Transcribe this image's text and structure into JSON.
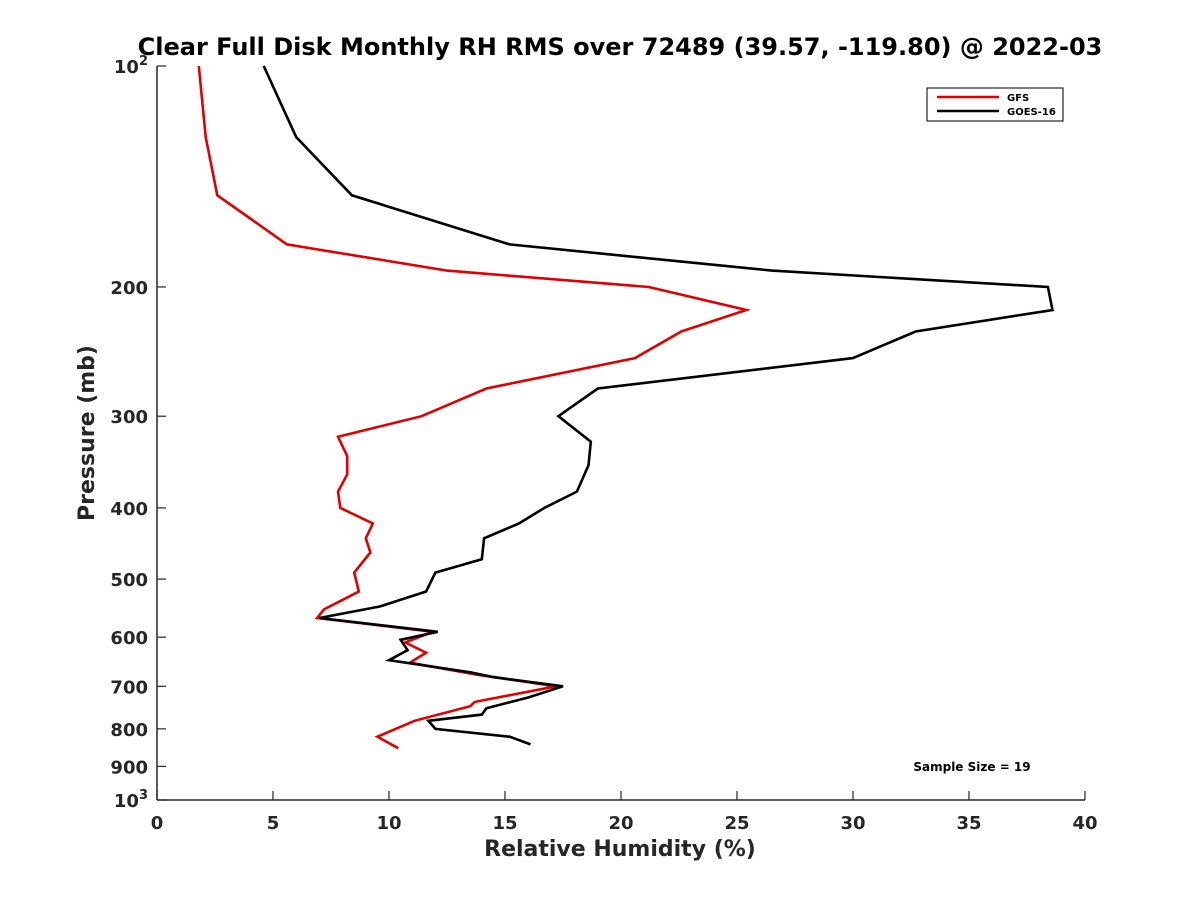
{
  "chart_data": {
    "type": "line",
    "title": "Clear Full Disk Monthly RH RMS over 72489 (39.57, -119.80) @ 2022-03",
    "xlabel": "Relative Humidity (%)",
    "ylabel": "Pressure (mb)",
    "xlim": [
      0,
      40
    ],
    "ylim": [
      100,
      1000
    ],
    "y_scale": "log",
    "y_reversed": true,
    "x_ticks": [
      "0",
      "5",
      "10",
      "15",
      "20",
      "25",
      "30",
      "35",
      "40"
    ],
    "y_ticks": [
      {
        "value": 100,
        "base": "10",
        "exp": "2"
      },
      {
        "value": 200,
        "label": "200"
      },
      {
        "value": 300,
        "label": "300"
      },
      {
        "value": 400,
        "label": "400"
      },
      {
        "value": 500,
        "label": "500"
      },
      {
        "value": 600,
        "label": "600"
      },
      {
        "value": 700,
        "label": "700"
      },
      {
        "value": 800,
        "label": "800"
      },
      {
        "value": 900,
        "label": "900"
      },
      {
        "value": 1000,
        "base": "10",
        "exp": "3"
      }
    ],
    "legend": {
      "position": "top-right"
    },
    "annotation": "Sample Size = 19",
    "series": [
      {
        "name": "GFS",
        "color": "#e00000",
        "rh": [
          1.8,
          2.1,
          2.6,
          5.6,
          12.5,
          21.2,
          25.4,
          22.6,
          20.6,
          14.2,
          11.4,
          7.8,
          8.2,
          8.2,
          7.8,
          7.9,
          9.3,
          9.0,
          9.2,
          8.5,
          8.7,
          7.2,
          6.9,
          11.9,
          10.7,
          11.6,
          10.9,
          13.8,
          17.2,
          13.7,
          13.5,
          11.1,
          9.5,
          9.8,
          10.4
        ],
        "pressure": [
          100,
          125,
          150,
          175,
          190,
          200,
          215,
          230,
          250,
          275,
          300,
          320,
          340,
          360,
          380,
          400,
          420,
          440,
          460,
          490,
          520,
          550,
          565,
          590,
          610,
          630,
          650,
          675,
          700,
          735,
          745,
          780,
          820,
          830,
          850
        ]
      },
      {
        "name": "GOES-16",
        "color": "#000000",
        "rh": [
          4.6,
          6.0,
          8.4,
          15.2,
          26.5,
          38.4,
          38.6,
          32.7,
          30.0,
          19.0,
          17.3,
          18.7,
          18.6,
          18.1,
          16.7,
          15.6,
          14.1,
          14.0,
          12.0,
          11.6,
          9.6,
          7.0,
          12.1,
          10.5,
          10.8,
          10.0,
          13.5,
          14.5,
          17.5,
          16.0,
          14.2,
          14.0,
          11.7,
          12.0,
          15.2,
          16.1
        ],
        "pressure": [
          100,
          125,
          150,
          175,
          190,
          200,
          215,
          230,
          250,
          275,
          300,
          325,
          350,
          380,
          400,
          420,
          440,
          470,
          490,
          520,
          545,
          565,
          590,
          605,
          625,
          645,
          670,
          680,
          700,
          725,
          750,
          765,
          780,
          800,
          820,
          840
        ]
      }
    ]
  }
}
